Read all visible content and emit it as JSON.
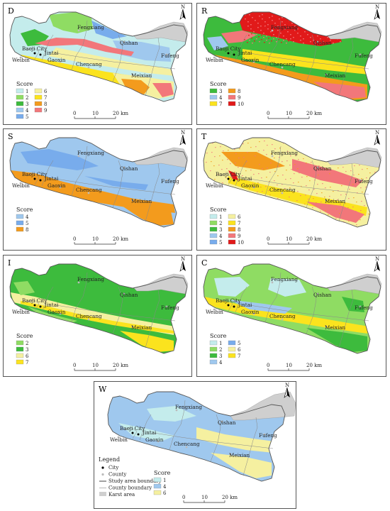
{
  "places": {
    "fengxiang": "Fengxiang",
    "qishan": "Qishan",
    "baoji": "Baoji City",
    "jintai": "Jintai",
    "weibin": "Weibin",
    "gaoxin": "Gaoxin",
    "chencang": "Chencang",
    "fufeng": "Fufeng",
    "meixian": "Meixian"
  },
  "north": "N",
  "scalebar": {
    "ticks": [
      "0",
      "10",
      "20 km"
    ]
  },
  "score_title": "Score",
  "colors": {
    "karst": "#cfcfcf",
    "s1": "#c4ecec",
    "s2": "#8fdc63",
    "s3": "#3dbb3d",
    "s4": "#9fc8ee",
    "s5": "#78acec",
    "s6": "#f5f0a0",
    "s7": "#fbe31e",
    "s8": "#f39b1d",
    "s9": "#f2777a",
    "s10": "#e11a1a"
  },
  "panels": [
    {
      "id": "D",
      "label": "D",
      "legend": [
        [
          "1",
          "6"
        ],
        [
          "2",
          "7"
        ],
        [
          "3",
          "8"
        ],
        [
          "4",
          "9"
        ],
        [
          "5",
          ""
        ]
      ]
    },
    {
      "id": "R",
      "label": "R",
      "legend": [
        [
          "3",
          "8"
        ],
        [
          "4",
          "9"
        ],
        [
          "7",
          "10"
        ]
      ]
    },
    {
      "id": "S",
      "label": "S",
      "legend": [
        [
          "4"
        ],
        [
          "5"
        ],
        [
          "8"
        ]
      ]
    },
    {
      "id": "T",
      "label": "T",
      "legend": [
        [
          "1",
          "6"
        ],
        [
          "2",
          "7"
        ],
        [
          "3",
          "8"
        ],
        [
          "4",
          "9"
        ],
        [
          "5",
          "10"
        ]
      ]
    },
    {
      "id": "I",
      "label": "I",
      "legend": [
        [
          "2"
        ],
        [
          "3"
        ],
        [
          "6"
        ],
        [
          "7"
        ]
      ]
    },
    {
      "id": "C",
      "label": "C",
      "legend": [
        [
          "1",
          "5"
        ],
        [
          "2",
          "6"
        ],
        [
          "3",
          "7"
        ],
        [
          "4",
          ""
        ]
      ]
    },
    {
      "id": "W",
      "label": "W",
      "legend": [
        [
          "1"
        ],
        [
          "4"
        ],
        [
          "6"
        ]
      ]
    }
  ],
  "legend": {
    "title": "Legend",
    "items": [
      "City",
      "County",
      "Study area boundary",
      "County boundary",
      "Karst area"
    ]
  }
}
